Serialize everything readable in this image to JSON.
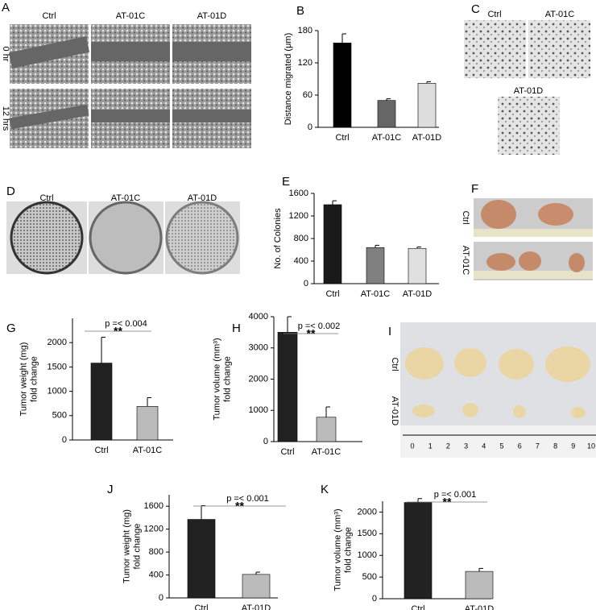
{
  "chart_data": [
    {
      "type": "bar",
      "panel": "B",
      "ylabel": [
        "Distance migrated (μm)"
      ],
      "categories": [
        "Ctrl",
        "AT-01C",
        "AT-01D"
      ],
      "values": [
        157,
        50,
        82
      ],
      "errors": [
        17,
        3,
        3
      ],
      "colors": [
        "#000000",
        "#666666",
        "#dddddd"
      ],
      "ylim": [
        0,
        180
      ],
      "yticks": [
        0,
        60,
        120,
        180
      ]
    },
    {
      "type": "bar",
      "panel": "E",
      "ylabel": [
        "No. of Colonies"
      ],
      "categories": [
        "Ctrl",
        "AT-01C",
        "AT-01D"
      ],
      "values": [
        1400,
        640,
        625
      ],
      "errors": [
        70,
        40,
        25
      ],
      "colors": [
        "#1a1a1a",
        "#808080",
        "#e0e0e0"
      ],
      "ylim": [
        0,
        1600
      ],
      "yticks": [
        0,
        400,
        800,
        1200,
        1600
      ]
    },
    {
      "type": "bar",
      "panel": "G",
      "ylabel": [
        "Tumor weight (mg)",
        "fold change"
      ],
      "categories": [
        "Ctrl",
        "AT-01C"
      ],
      "values": [
        1580,
        690
      ],
      "errors": [
        530,
        180
      ],
      "colors": [
        "#222222",
        "#bbbbbb"
      ],
      "ylim": [
        0,
        2500
      ],
      "yticks": [
        0,
        500,
        1000,
        1500,
        2000
      ],
      "pvalue": "p =< 0.004",
      "stars": "**"
    },
    {
      "type": "bar",
      "panel": "H",
      "ylabel": [
        "Tumor volume (mm³)",
        "fold change"
      ],
      "categories": [
        "Ctrl",
        "AT-01C"
      ],
      "values": [
        3500,
        780
      ],
      "errors": [
        500,
        330
      ],
      "colors": [
        "#222222",
        "#bbbbbb"
      ],
      "ylim": [
        0,
        4000
      ],
      "yticks": [
        0,
        1000,
        2000,
        3000,
        4000
      ],
      "pvalue": "p =< 0.002",
      "stars": "**"
    },
    {
      "type": "bar",
      "panel": "J",
      "ylabel": [
        "Tumor weight (mg)",
        "fold change"
      ],
      "categories": [
        "Ctrl",
        "AT-01D"
      ],
      "values": [
        1370,
        410
      ],
      "errors": [
        240,
        40
      ],
      "colors": [
        "#222222",
        "#bbbbbb"
      ],
      "ylim": [
        0,
        1800
      ],
      "yticks": [
        0,
        400,
        800,
        1200,
        1600
      ],
      "pvalue": "p =< 0.001",
      "stars": "**"
    },
    {
      "type": "bar",
      "panel": "K",
      "ylabel": [
        "Tumor volume (mm³)",
        "fold change"
      ],
      "categories": [
        "Ctrl",
        "AT-01D"
      ],
      "values": [
        2220,
        630
      ],
      "errors": [
        90,
        70
      ],
      "colors": [
        "#222222",
        "#bbbbbb"
      ],
      "ylim": [
        0,
        2250
      ],
      "yticks": [
        0,
        500,
        1000,
        1500,
        2000
      ],
      "pvalue": "p =< 0.001",
      "stars": "**"
    }
  ],
  "images": [
    {
      "panel": "A",
      "columns": [
        "Ctrl",
        "AT-01C",
        "AT-01D"
      ],
      "rows": [
        "0 hr",
        "12 hrs"
      ]
    },
    {
      "panel": "C",
      "labels": [
        "Ctrl",
        "AT-01C",
        "AT-01D"
      ]
    },
    {
      "panel": "D",
      "labels": [
        "Ctrl",
        "AT-01C",
        "AT-01D"
      ]
    },
    {
      "panel": "F",
      "rows": [
        "Ctrl",
        "AT-01C"
      ]
    },
    {
      "panel": "I",
      "rows": [
        "Ctrl",
        "AT-01D"
      ],
      "ruler": [
        "0",
        "1",
        "2",
        "3",
        "4",
        "5",
        "6",
        "7",
        "8",
        "9",
        "10"
      ]
    }
  ]
}
